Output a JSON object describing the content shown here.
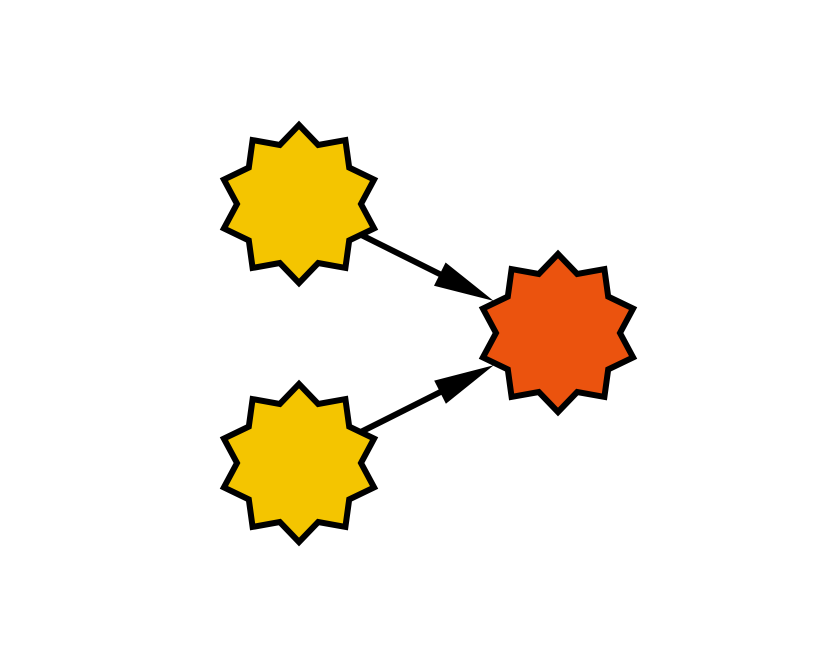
{
  "diagram": {
    "type": "directed-graph",
    "background": "#ffffff",
    "node_shape": "ten-point-star",
    "outline_color": "#000000",
    "nodes": [
      {
        "id": "source-top",
        "color": "#f4c500"
      },
      {
        "id": "source-bottom",
        "color": "#f4c500"
      },
      {
        "id": "target",
        "color": "#eb530e"
      }
    ],
    "edges": [
      {
        "from": "source-top",
        "to": "target"
      },
      {
        "from": "source-bottom",
        "to": "target"
      }
    ]
  }
}
